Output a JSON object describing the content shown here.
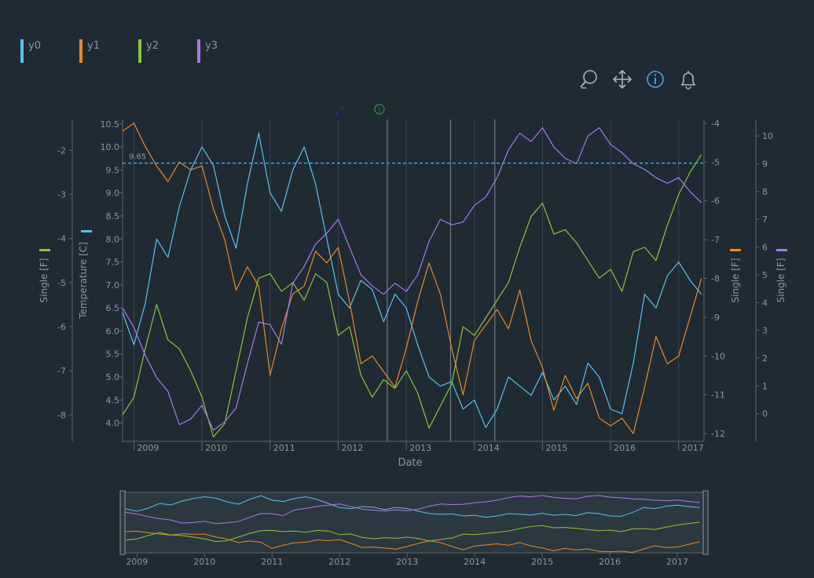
{
  "legend": [
    {
      "label": "y0",
      "color": "#5bc0eb"
    },
    {
      "label": "y1",
      "color": "#e8892b"
    },
    {
      "label": "y2",
      "color": "#8cc43c"
    },
    {
      "label": "y3",
      "color": "#a77ae8"
    }
  ],
  "toolbar": {
    "icons": [
      "zoom-icon",
      "pan-icon",
      "info-icon",
      "bell-icon"
    ],
    "active_color": "#4aa8e0"
  },
  "chart_data": {
    "type": "line",
    "xlabel": "Date",
    "x_ticks": [
      "2009",
      "2010",
      "2011",
      "2012",
      "2013",
      "2014",
      "2015",
      "2016",
      "2017"
    ],
    "x_range": [
      "2008-11-01",
      "2017-05-15"
    ],
    "axes": {
      "y0": {
        "label": "Temperature [C]",
        "range": [
          3.6,
          10.6
        ],
        "ticks": [
          4.0,
          4.5,
          5.0,
          5.5,
          6.0,
          6.5,
          7.0,
          7.5,
          8.0,
          8.5,
          9.0,
          9.5,
          10.0,
          10.5
        ],
        "color": "#5bc0eb",
        "position": "left-inner"
      },
      "y1": {
        "label": "Single [F]",
        "range": [
          -12.2,
          -3.9
        ],
        "ticks": [
          -12,
          -11,
          -10,
          -9,
          -8,
          -7,
          -6,
          -5,
          -4
        ],
        "color": "#e8892b",
        "position": "right-inner"
      },
      "y2": {
        "label": "Single [F]",
        "range": [
          -8.6,
          -1.3
        ],
        "ticks": [
          -8,
          -7,
          -6,
          -5,
          -4,
          -3,
          -2
        ],
        "color": "#8cc43c",
        "position": "left-outer"
      },
      "y3": {
        "label": "Single [F]",
        "range": [
          -1.0,
          10.6
        ],
        "ticks": [
          0,
          1,
          2,
          3,
          4,
          5,
          6,
          7,
          8,
          9,
          10
        ],
        "color": "#a77ae8",
        "position": "right-outer"
      }
    },
    "reference_line": {
      "axis": "y0",
      "value": 9.65,
      "label": "9.65",
      "color": "#4aa8e0"
    },
    "annotations": [
      {
        "label": "",
        "type": "markers",
        "color": "#1e3fa0"
      },
      {
        "label": "",
        "type": "info",
        "color": "#2f9a3a"
      }
    ],
    "series": [
      {
        "name": "y0",
        "axis": "y0",
        "color": "#5bc0eb",
        "x": [
          "2008-11",
          "2009-01",
          "2009-03",
          "2009-05",
          "2009-07",
          "2009-09",
          "2009-11",
          "2010-01",
          "2010-03",
          "2010-05",
          "2010-07",
          "2010-09",
          "2010-11",
          "2011-01",
          "2011-03",
          "2011-05",
          "2011-07",
          "2011-09",
          "2011-11",
          "2012-01",
          "2012-03",
          "2012-05",
          "2012-07",
          "2012-09",
          "2012-11",
          "2013-01",
          "2013-03",
          "2013-05",
          "2013-07",
          "2013-09",
          "2013-11",
          "2014-01",
          "2014-03",
          "2014-05",
          "2014-07",
          "2014-09",
          "2014-11",
          "2015-01",
          "2015-03",
          "2015-05",
          "2015-07",
          "2015-09",
          "2015-11",
          "2016-01",
          "2016-03",
          "2016-05",
          "2016-07",
          "2016-09",
          "2016-11",
          "2017-01",
          "2017-03",
          "2017-05"
        ],
        "y": [
          6.4,
          5.7,
          6.6,
          8.0,
          7.6,
          8.7,
          9.5,
          10.0,
          9.6,
          8.5,
          7.8,
          9.2,
          10.3,
          9.0,
          8.6,
          9.5,
          10.0,
          9.2,
          8.0,
          6.8,
          6.5,
          7.1,
          6.9,
          6.2,
          6.8,
          6.5,
          5.7,
          5.0,
          4.8,
          4.9,
          4.3,
          4.5,
          3.9,
          4.3,
          5.0,
          4.8,
          4.6,
          5.1,
          4.5,
          4.8,
          4.4,
          5.3,
          5.0,
          4.3,
          4.2,
          5.3,
          6.8,
          6.5,
          7.2,
          7.5,
          7.1,
          6.8
        ]
      },
      {
        "name": "y1",
        "axis": "y1",
        "color": "#e8892b",
        "x": [
          "2008-11",
          "2009-01",
          "2009-03",
          "2009-05",
          "2009-07",
          "2009-09",
          "2009-11",
          "2010-01",
          "2010-03",
          "2010-05",
          "2010-07",
          "2010-09",
          "2010-11",
          "2011-01",
          "2011-03",
          "2011-05",
          "2011-07",
          "2011-09",
          "2011-11",
          "2012-01",
          "2012-03",
          "2012-05",
          "2012-07",
          "2012-09",
          "2012-11",
          "2013-01",
          "2013-03",
          "2013-05",
          "2013-07",
          "2013-09",
          "2013-11",
          "2014-01",
          "2014-03",
          "2014-05",
          "2014-07",
          "2014-09",
          "2014-11",
          "2015-01",
          "2015-03",
          "2015-05",
          "2015-07",
          "2015-09",
          "2015-11",
          "2016-01",
          "2016-03",
          "2016-05",
          "2016-07",
          "2016-09",
          "2016-11",
          "2017-01",
          "2017-03",
          "2017-05"
        ],
        "y": [
          -4.2,
          -4.0,
          -4.6,
          -5.1,
          -5.5,
          -5.0,
          -5.2,
          -5.1,
          -6.2,
          -7.0,
          -8.3,
          -7.7,
          -8.2,
          -10.5,
          -9.3,
          -8.4,
          -8.2,
          -7.3,
          -7.6,
          -7.2,
          -8.6,
          -10.2,
          -10.0,
          -10.4,
          -10.8,
          -9.8,
          -8.6,
          -7.6,
          -8.4,
          -9.8,
          -11.0,
          -9.6,
          -9.2,
          -8.8,
          -9.3,
          -8.3,
          -9.6,
          -10.3,
          -11.4,
          -10.5,
          -11.1,
          -10.7,
          -11.6,
          -11.8,
          -11.6,
          -12.0,
          -10.8,
          -9.5,
          -10.2,
          -10.0,
          -9.0,
          -8.0
        ]
      },
      {
        "name": "y2",
        "axis": "y2",
        "color": "#8cc43c",
        "x": [
          "2008-11",
          "2009-01",
          "2009-03",
          "2009-05",
          "2009-07",
          "2009-09",
          "2009-11",
          "2010-01",
          "2010-03",
          "2010-05",
          "2010-07",
          "2010-09",
          "2010-11",
          "2011-01",
          "2011-03",
          "2011-05",
          "2011-07",
          "2011-09",
          "2011-11",
          "2012-01",
          "2012-03",
          "2012-05",
          "2012-07",
          "2012-09",
          "2012-11",
          "2013-01",
          "2013-03",
          "2013-05",
          "2013-07",
          "2013-09",
          "2013-11",
          "2014-01",
          "2014-03",
          "2014-05",
          "2014-07",
          "2014-09",
          "2014-11",
          "2015-01",
          "2015-03",
          "2015-05",
          "2015-07",
          "2015-09",
          "2015-11",
          "2016-01",
          "2016-03",
          "2016-05",
          "2016-07",
          "2016-09",
          "2016-11",
          "2017-01",
          "2017-03",
          "2017-05"
        ],
        "y": [
          -8.0,
          -7.6,
          -6.5,
          -5.5,
          -6.3,
          -6.5,
          -7.0,
          -7.6,
          -8.5,
          -8.2,
          -7.0,
          -5.8,
          -4.9,
          -4.8,
          -5.2,
          -5.0,
          -5.4,
          -4.8,
          -5.0,
          -6.2,
          -6.0,
          -7.1,
          -7.6,
          -7.2,
          -7.4,
          -7.0,
          -7.5,
          -8.3,
          -7.8,
          -7.3,
          -6.0,
          -6.2,
          -5.8,
          -5.4,
          -5.0,
          -4.2,
          -3.5,
          -3.2,
          -3.9,
          -3.8,
          -4.1,
          -4.5,
          -4.9,
          -4.7,
          -5.2,
          -4.3,
          -4.2,
          -4.5,
          -3.7,
          -3.0,
          -2.5,
          -2.1
        ]
      },
      {
        "name": "y3",
        "axis": "y3",
        "color": "#a77ae8",
        "x": [
          "2008-11",
          "2009-01",
          "2009-03",
          "2009-05",
          "2009-07",
          "2009-09",
          "2009-11",
          "2010-01",
          "2010-03",
          "2010-05",
          "2010-07",
          "2010-09",
          "2010-11",
          "2011-01",
          "2011-03",
          "2011-05",
          "2011-07",
          "2011-09",
          "2011-11",
          "2012-01",
          "2012-03",
          "2012-05",
          "2012-07",
          "2012-09",
          "2012-11",
          "2013-01",
          "2013-03",
          "2013-05",
          "2013-07",
          "2013-09",
          "2013-11",
          "2014-01",
          "2014-03",
          "2014-05",
          "2014-07",
          "2014-09",
          "2014-11",
          "2015-01",
          "2015-03",
          "2015-05",
          "2015-07",
          "2015-09",
          "2015-11",
          "2016-01",
          "2016-03",
          "2016-05",
          "2016-07",
          "2016-09",
          "2016-11",
          "2017-01",
          "2017-03",
          "2017-05"
        ],
        "y": [
          3.8,
          3.1,
          2.1,
          1.3,
          0.8,
          -0.4,
          -0.2,
          0.3,
          -0.6,
          -0.3,
          0.2,
          1.8,
          3.3,
          3.2,
          2.5,
          4.7,
          5.3,
          6.1,
          6.5,
          7.0,
          6.0,
          5.0,
          4.6,
          4.3,
          4.7,
          4.4,
          5.0,
          6.2,
          7.0,
          6.8,
          6.9,
          7.5,
          7.8,
          8.5,
          9.5,
          10.1,
          9.8,
          10.3,
          9.6,
          9.2,
          9.0,
          10.0,
          10.3,
          9.7,
          9.4,
          9.0,
          8.8,
          8.5,
          8.3,
          8.5,
          8.0,
          7.6
        ]
      }
    ],
    "navigator": {
      "x_ticks": [
        "2009",
        "2010",
        "2011",
        "2012",
        "2013",
        "2014",
        "2015",
        "2016",
        "2017"
      ]
    }
  }
}
